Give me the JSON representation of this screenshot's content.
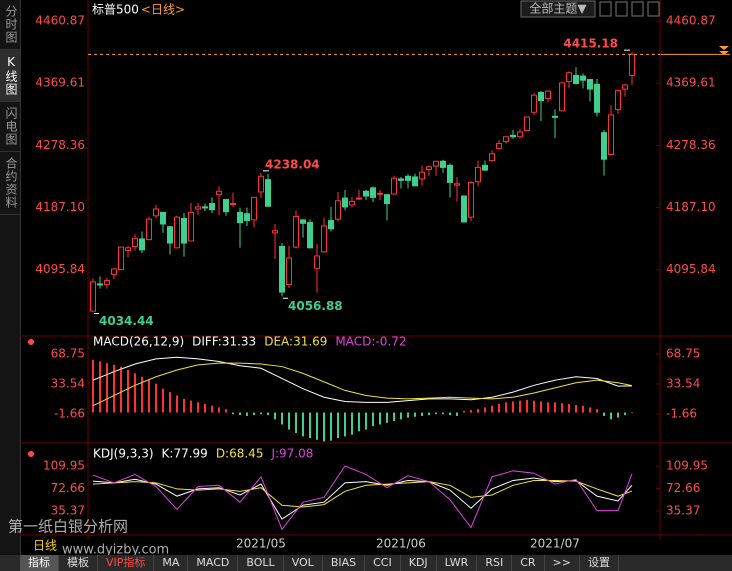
{
  "sidebar": [
    "分时图",
    "K线图",
    "闪电图",
    "合约资料"
  ],
  "header": {
    "title": "标普500",
    "period": "<日线>",
    "theme": "全部主题▼"
  },
  "watermark": {
    "name": "第一纸白银分析网",
    "period": "日线",
    "url": "www.dyizby.com"
  },
  "tabs": [
    "指标",
    "模板",
    "VIP指标",
    "MA",
    "MACD",
    "BOLL",
    "VOL",
    "BIAS",
    "CCI",
    "KDJ",
    "LWR",
    "RSI",
    "CR",
    ">>",
    "设置"
  ],
  "chart_data": [
    {
      "type": "candlestick",
      "categories": [
        null,
        null,
        null,
        null,
        null,
        null,
        null,
        null,
        null,
        null,
        null,
        null,
        null,
        null,
        null,
        null,
        null,
        null,
        null,
        null,
        "2021/05",
        null,
        null,
        null,
        null,
        null,
        null,
        null,
        null,
        null,
        null,
        null,
        null,
        null,
        null,
        null,
        null,
        null,
        null,
        null,
        "2021/06",
        null,
        null,
        null,
        null,
        null,
        null,
        null,
        null,
        null,
        null,
        null,
        null,
        null,
        null,
        null,
        null,
        null,
        null,
        null,
        null,
        null,
        "2021/07",
        null,
        null,
        null,
        null,
        null,
        null,
        null,
        null,
        null,
        null,
        null,
        null,
        null,
        null,
        null
      ],
      "open": [
        4035,
        4075,
        4074,
        4089,
        4096,
        4124,
        4130,
        4141,
        4140,
        4175,
        4180,
        4159,
        4128,
        4171,
        4138,
        4185,
        4188,
        4193,
        4206,
        4199,
        4192,
        4180,
        4178,
        4169,
        4210,
        4228,
        4150,
        4130,
        4074,
        4129,
        4169,
        4165,
        4098,
        4122,
        4168,
        4170,
        4201,
        4191,
        4201,
        4211,
        4216,
        4207,
        4206,
        4207,
        4229,
        4233,
        4232,
        4229,
        4243,
        4248,
        4255,
        4249,
        4220,
        4204,
        4173,
        4225,
        4249,
        4256,
        4274,
        4284,
        4293,
        4291,
        4300,
        4327,
        4356,
        4347,
        4321,
        4329,
        4372,
        4381,
        4380,
        4375,
        4368,
        4297,
        4265,
        4331,
        4361,
        4381
      ],
      "high": [
        4083,
        4086,
        4084,
        4098,
        4129,
        4131,
        4148,
        4152,
        4174,
        4191,
        4180,
        4160,
        4175,
        4179,
        4194,
        4194,
        4193,
        4202,
        4218,
        4199,
        4209,
        4187,
        4187,
        4202,
        4238.04,
        4236,
        4163,
        4135,
        4131,
        4183,
        4169,
        4170,
        4134,
        4172,
        4188,
        4210,
        4213,
        4203,
        4213,
        4213,
        4218,
        4213,
        4207,
        4234,
        4232,
        4236,
        4237,
        4249,
        4249,
        4255,
        4257,
        4252,
        4232,
        4204,
        4226,
        4256,
        4256,
        4271,
        4286,
        4292,
        4301,
        4302,
        4320,
        4355,
        4358,
        4359,
        4331,
        4372,
        4387,
        4393,
        4384,
        4376,
        4376,
        4301,
        4337,
        4359,
        4369,
        4415.18
      ],
      "low": [
        4034.44,
        4068,
        4068,
        4082,
        4095,
        4114,
        4124,
        4120,
        4139,
        4171,
        4150,
        4118,
        4127,
        4115,
        4138,
        4176,
        4182,
        4179,
        4176,
        4175,
        4188,
        4128,
        4160,
        4158,
        4201,
        4188,
        4112,
        4056.88,
        4069,
        4127,
        4143,
        4127,
        4062,
        4121,
        4152,
        4167,
        4183,
        4187,
        4198,
        4198,
        4195,
        4198,
        4168,
        4206,
        4215,
        4215,
        4218,
        4219,
        4233,
        4234,
        4238,
        4202,
        4196,
        4165,
        4167,
        4218,
        4241,
        4255,
        4271,
        4281,
        4288,
        4288,
        4300,
        4323,
        4314,
        4342,
        4289,
        4329,
        4362,
        4368,
        4362,
        4343,
        4321,
        4234,
        4265,
        4325,
        4350,
        4367
      ],
      "close": [
        4078,
        4074,
        4080,
        4097,
        4129,
        4128,
        4142,
        4125,
        4170,
        4185,
        4163,
        4135,
        4173,
        4135,
        4180,
        4188,
        4187,
        4184,
        4211,
        4181,
        4193,
        4165,
        4168,
        4202,
        4233,
        4189,
        4153,
        4063,
        4113,
        4174,
        4164,
        4128,
        4116,
        4160,
        4156,
        4197,
        4188,
        4196,
        4201,
        4204,
        4202,
        4208,
        4193,
        4230,
        4227,
        4227,
        4219,
        4239,
        4247,
        4255,
        4246,
        4224,
        4222,
        4166,
        4224,
        4246,
        4242,
        4266,
        4281,
        4291,
        4291,
        4298,
        4320,
        4352,
        4344,
        4358,
        4320,
        4370,
        4385,
        4369,
        4374,
        4361,
        4327,
        4258,
        4323,
        4359,
        4367,
        4412
      ],
      "up_color": "#ff3232",
      "down_color": "#3fcf8e",
      "ylim": [
        4000,
        4480
      ],
      "yticks": [
        4460.87,
        4369.61,
        4278.36,
        {
          "value": 4187.1,
          "label": "4187.10"
        },
        4095.84
      ]
    },
    {
      "type": "macd",
      "title": "MACD(26,12,9)",
      "x": [
        0,
        3,
        6,
        9,
        12,
        15,
        18,
        21,
        24,
        27,
        30,
        33,
        36,
        39,
        42,
        45,
        48,
        51,
        54,
        57,
        60,
        63,
        66,
        69,
        72,
        75,
        77
      ],
      "series": [
        {
          "label": "DIFF:31.33",
          "color": "#ffffff",
          "values": [
            38,
            48,
            57,
            63,
            65,
            63,
            60,
            55,
            52,
            40,
            28,
            18,
            13,
            12,
            12,
            14,
            16,
            16,
            15,
            18,
            24,
            32,
            38,
            42,
            40,
            31,
            31.33
          ]
        },
        {
          "label": "DEA:31.69",
          "color": "#f0e040",
          "values": [
            8,
            20,
            32,
            42,
            50,
            56,
            58,
            58,
            57,
            54,
            46,
            36,
            26,
            20,
            17,
            16,
            17,
            18,
            17,
            16,
            18,
            23,
            29,
            35,
            38,
            35,
            31.69
          ]
        }
      ],
      "histogram": {
        "label": "MACD:-0.72",
        "color": "#e040e0",
        "up_color": "#ff3232",
        "down_color": "#3fcf8e",
        "values": [
          62,
          60,
          58,
          56,
          54,
          50,
          46,
          42,
          38,
          34,
          28,
          24,
          20,
          16,
          14,
          12,
          10,
          8,
          6,
          4,
          -2,
          -3,
          -4,
          -3,
          -2,
          -3,
          -8,
          -14,
          -20,
          -24,
          -28,
          -30,
          -32,
          -34,
          -33,
          -30,
          -28,
          -26,
          -22,
          -20,
          -16,
          -14,
          -12,
          -10,
          -8,
          -6,
          -5,
          -4,
          -3,
          -2,
          -2,
          -3,
          -4,
          2,
          3,
          4,
          6,
          8,
          10,
          12,
          13,
          14,
          15,
          14,
          13,
          12,
          12,
          11,
          10,
          9,
          8,
          6,
          4,
          -4,
          -8,
          -6,
          -3,
          -0.72
        ]
      },
      "ylim": [
        -34.6,
        85.2
      ],
      "yticks": [
        68.75,
        33.54,
        -1.66
      ]
    },
    {
      "type": "kdj",
      "title": "KDJ(9,3,3)",
      "x": [
        0,
        3,
        6,
        9,
        12,
        15,
        18,
        21,
        24,
        27,
        30,
        33,
        36,
        39,
        42,
        45,
        48,
        51,
        54,
        57,
        60,
        63,
        66,
        69,
        72,
        75,
        77
      ],
      "series": [
        {
          "label": "K:77.99",
          "color": "#ffffff",
          "values": [
            85,
            82,
            88,
            80,
            60,
            72,
            74,
            62,
            80,
            22,
            45,
            50,
            82,
            84,
            78,
            86,
            84,
            70,
            40,
            72,
            86,
            90,
            84,
            86,
            60,
            52,
            77.99
          ]
        },
        {
          "label": "D:68.45",
          "color": "#f0e040",
          "values": [
            80,
            82,
            84,
            82,
            72,
            70,
            72,
            68,
            74,
            45,
            42,
            46,
            68,
            78,
            80,
            82,
            84,
            78,
            58,
            62,
            78,
            86,
            86,
            85,
            72,
            60,
            68.45
          ]
        },
        {
          "label": "J:97.08",
          "color": "#e040e0",
          "values": [
            95,
            82,
            96,
            76,
            38,
            76,
            78,
            50,
            92,
            5,
            50,
            58,
            110,
            96,
            74,
            94,
            84,
            54,
            8,
            92,
            102,
            98,
            80,
            88,
            36,
            36,
            97.08
          ]
        }
      ],
      "ylim": [
        0.6,
        136.5
      ],
      "yticks": [
        109.95,
        72.66,
        35.37
      ]
    }
  ]
}
